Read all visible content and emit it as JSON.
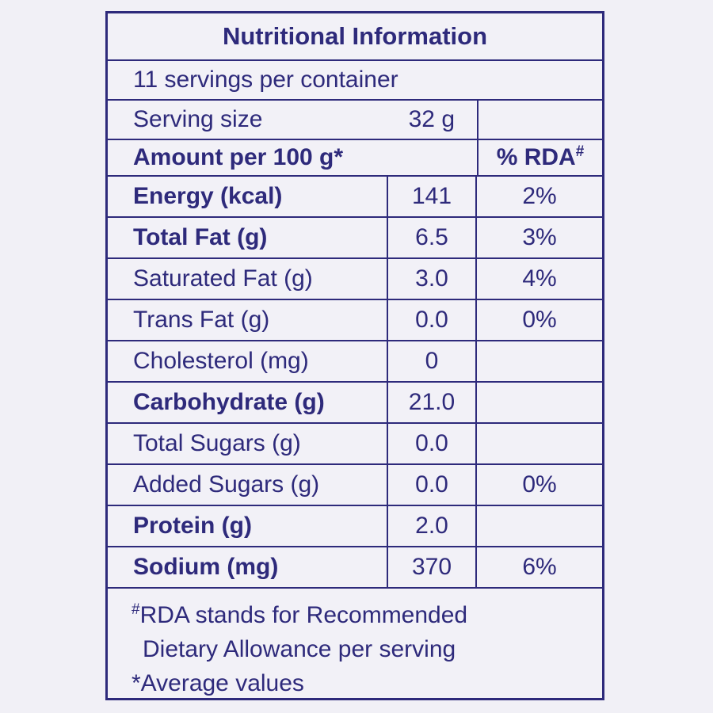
{
  "title": "Nutritional Information",
  "servings_line": "11 servings per container",
  "serving_size": {
    "label": "Serving size",
    "value": "32 g"
  },
  "header": {
    "amount_label": "Amount per 100 g*",
    "rda_label": "% RDA",
    "rda_superscript": "#"
  },
  "rows": [
    {
      "label": "Energy (kcal)",
      "amount": "141",
      "rda": "2%"
    },
    {
      "label": "Total Fat (g)",
      "amount": "6.5",
      "rda": "3%"
    },
    {
      "label": "Saturated Fat (g)",
      "amount": "3.0",
      "rda": "4%"
    },
    {
      "label": "Trans Fat (g)",
      "amount": "0.0",
      "rda": "0%"
    },
    {
      "label": "Cholesterol (mg)",
      "amount": "0",
      "rda": ""
    },
    {
      "label": "Carbohydrate (g)",
      "amount": "21.0",
      "rda": ""
    },
    {
      "label": "Total Sugars (g)",
      "amount": "0.0",
      "rda": ""
    },
    {
      "label": "Added Sugars (g)",
      "amount": "0.0",
      "rda": "0%"
    },
    {
      "label": "Protein (g)",
      "amount": "2.0",
      "rda": ""
    },
    {
      "label": "Sodium (mg)",
      "amount": "370",
      "rda": "6%"
    }
  ],
  "footnotes": {
    "superscript": "#",
    "line1": "RDA stands for Recommended",
    "line2": "Dietary Allowance per serving",
    "line3": "*Average values"
  },
  "colors": {
    "ink": "#2e2a7b",
    "background": "#f1f0f6",
    "cell_background": "#f2f1f7"
  }
}
